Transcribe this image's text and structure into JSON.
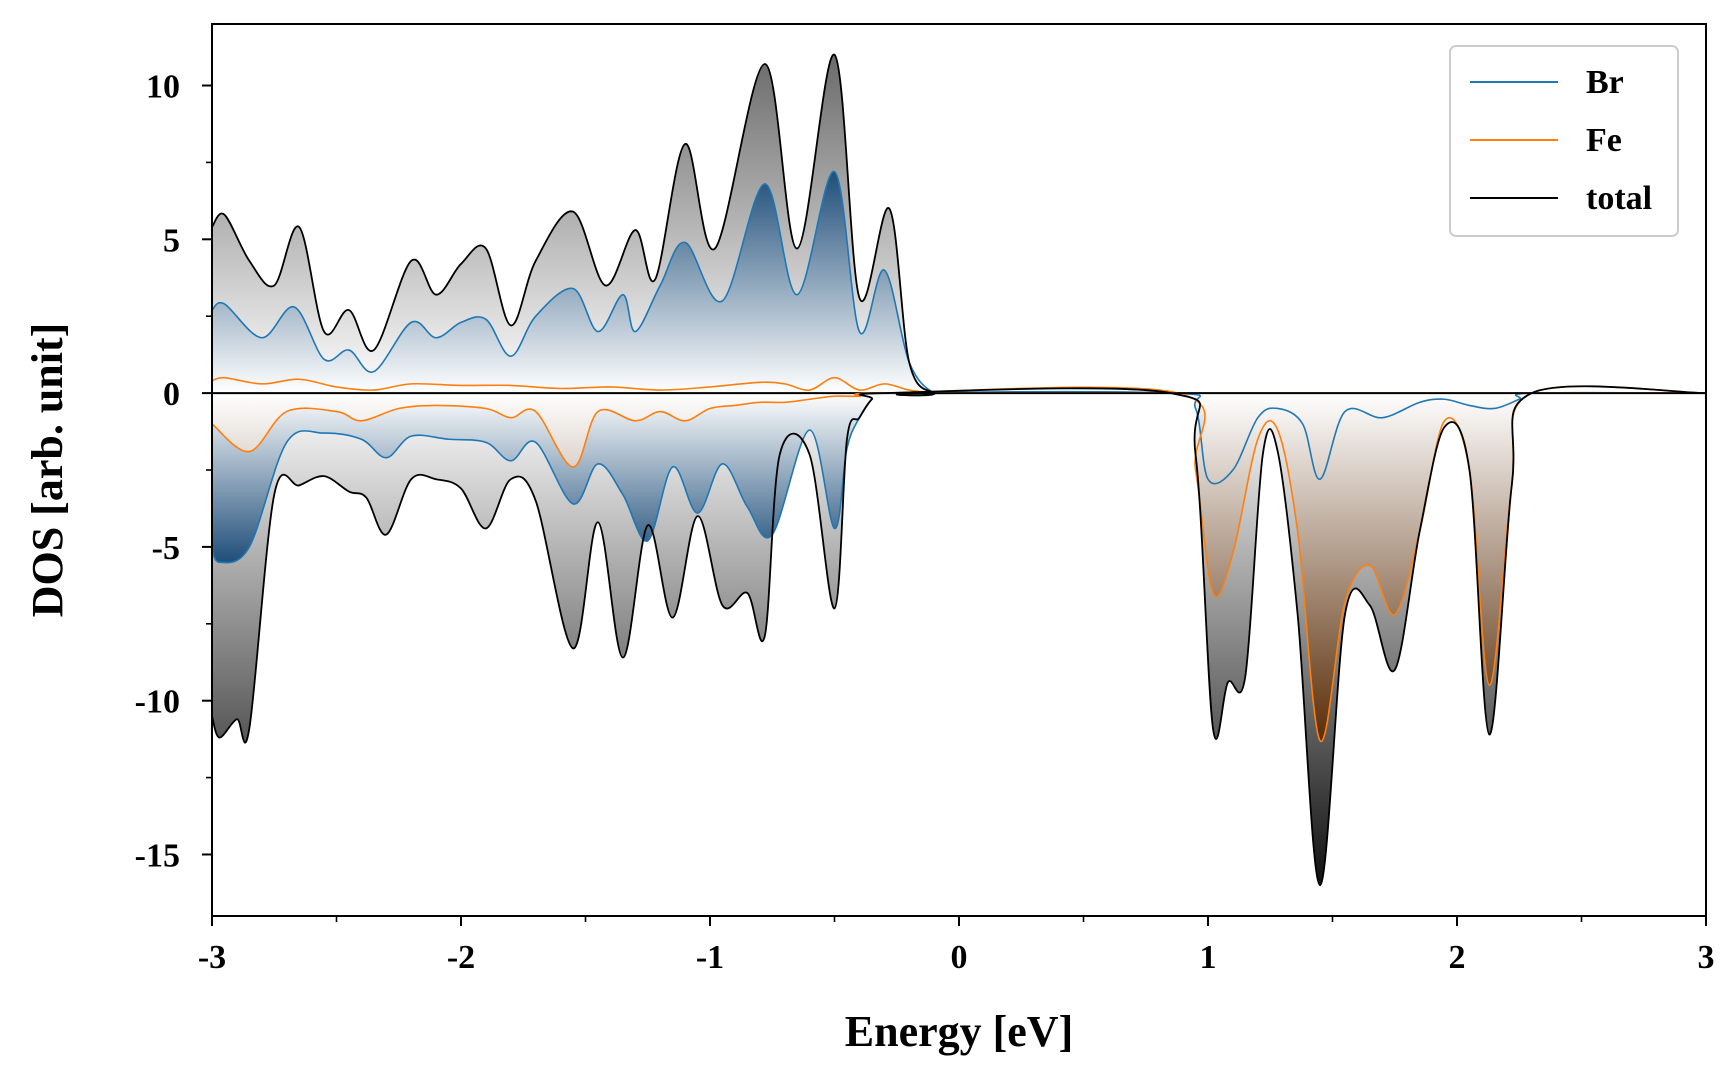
{
  "chart_data": {
    "type": "area",
    "xlabel": "Energy [eV]",
    "ylabel": "DOS [arb. unit]",
    "xlim": [
      -3,
      3
    ],
    "ylim": [
      -17,
      12
    ],
    "xticks": [
      -3,
      -2,
      -1,
      0,
      1,
      2,
      3
    ],
    "xtick_labels": [
      "-3",
      "-2",
      "-1",
      "0",
      "1",
      "2",
      "3"
    ],
    "yticks": [
      -15,
      -10,
      -5,
      0,
      5,
      10
    ],
    "ytick_labels": [
      "-15",
      "-10",
      "-5",
      "0",
      "5",
      "10"
    ],
    "grid": false,
    "legend_position": "top-right",
    "colors": {
      "Br": "#1f77b4",
      "Fe": "#ff7f0e",
      "total": "#000000"
    },
    "series": [
      {
        "name": "Br",
        "x_up": [
          -3.0,
          -2.95,
          -2.8,
          -2.67,
          -2.55,
          -2.45,
          -2.35,
          -2.2,
          -2.1,
          -2.0,
          -1.9,
          -1.8,
          -1.7,
          -1.55,
          -1.45,
          -1.35,
          -1.3,
          -1.2,
          -1.1,
          -0.95,
          -0.78,
          -0.65,
          -0.5,
          -0.4,
          -0.3,
          -0.2,
          -0.1,
          0.0,
          3.0
        ],
        "y_up": [
          2.7,
          2.9,
          1.8,
          2.8,
          1.1,
          1.4,
          0.7,
          2.3,
          1.8,
          2.3,
          2.4,
          1.2,
          2.5,
          3.4,
          2.0,
          3.2,
          2.0,
          3.5,
          4.9,
          3.0,
          6.8,
          3.2,
          7.2,
          2.0,
          4.0,
          1.0,
          0.0,
          0.0,
          0.0
        ],
        "x_down": [
          -3.0,
          -2.97,
          -2.85,
          -2.7,
          -2.55,
          -2.4,
          -2.3,
          -2.2,
          -2.05,
          -1.9,
          -1.8,
          -1.7,
          -1.55,
          -1.45,
          -1.35,
          -1.25,
          -1.15,
          -1.05,
          -0.95,
          -0.85,
          -0.75,
          -0.6,
          -0.5,
          -0.45,
          -0.4,
          -0.35,
          -0.3,
          0.85,
          0.95,
          1.0,
          1.1,
          1.2,
          1.28,
          1.38,
          1.45,
          1.55,
          1.7,
          1.85,
          1.95,
          2.05,
          2.15,
          2.25,
          2.3,
          3.0
        ],
        "y_down": [
          -5.0,
          -5.5,
          -5.0,
          -1.6,
          -1.3,
          -1.5,
          -2.1,
          -1.4,
          -1.5,
          -1.6,
          -2.2,
          -1.6,
          -3.6,
          -2.3,
          -3.3,
          -4.8,
          -2.4,
          -3.9,
          -2.3,
          -3.7,
          -4.6,
          -1.2,
          -4.4,
          -1.8,
          -0.8,
          -0.2,
          0.0,
          0.0,
          -0.5,
          -2.8,
          -2.5,
          -0.8,
          -0.5,
          -1.0,
          -2.8,
          -0.6,
          -0.8,
          -0.3,
          -0.2,
          -0.4,
          -0.5,
          -0.2,
          0.0,
          0.0
        ]
      },
      {
        "name": "Fe",
        "x_up": [
          -3.0,
          -2.95,
          -2.8,
          -2.65,
          -2.5,
          -2.35,
          -2.2,
          -2.0,
          -1.8,
          -1.6,
          -1.4,
          -1.2,
          -1.0,
          -0.8,
          -0.7,
          -0.6,
          -0.5,
          -0.4,
          -0.3,
          -0.2,
          -0.1,
          0.0,
          3.0
        ],
        "y_up": [
          0.4,
          0.5,
          0.3,
          0.45,
          0.2,
          0.1,
          0.3,
          0.25,
          0.25,
          0.15,
          0.2,
          0.1,
          0.2,
          0.35,
          0.3,
          0.1,
          0.5,
          0.1,
          0.3,
          0.1,
          0.0,
          0.0,
          0.0
        ],
        "x_down": [
          -3.0,
          -2.85,
          -2.7,
          -2.5,
          -2.4,
          -2.25,
          -2.1,
          -1.9,
          -1.8,
          -1.7,
          -1.55,
          -1.45,
          -1.3,
          -1.2,
          -1.1,
          -1.0,
          -0.9,
          -0.8,
          -0.7,
          -0.6,
          -0.5,
          -0.4,
          -0.3,
          0.88,
          0.95,
          1.02,
          1.1,
          1.2,
          1.28,
          1.36,
          1.45,
          1.55,
          1.65,
          1.75,
          1.85,
          1.95,
          2.05,
          2.13,
          2.22,
          2.3,
          3.0
        ],
        "y_down": [
          -1.0,
          -1.9,
          -0.6,
          -0.6,
          -0.9,
          -0.5,
          -0.4,
          -0.5,
          -0.8,
          -0.6,
          -2.4,
          -0.6,
          -0.9,
          -0.6,
          -0.9,
          -0.5,
          -0.4,
          -0.3,
          -0.3,
          -0.2,
          -0.1,
          -0.1,
          0.0,
          0.0,
          -2.5,
          -6.5,
          -5.2,
          -1.5,
          -1.2,
          -4.5,
          -11.3,
          -6.8,
          -5.6,
          -7.2,
          -4.5,
          -0.9,
          -2.5,
          -9.5,
          -3.0,
          0.0,
          0.0
        ]
      },
      {
        "name": "total",
        "x_up": [
          -3.0,
          -2.95,
          -2.85,
          -2.75,
          -2.65,
          -2.55,
          -2.45,
          -2.35,
          -2.2,
          -2.1,
          -2.0,
          -1.9,
          -1.8,
          -1.7,
          -1.55,
          -1.42,
          -1.3,
          -1.22,
          -1.1,
          -0.98,
          -0.78,
          -0.65,
          -0.5,
          -0.4,
          -0.28,
          -0.2,
          -0.1,
          0.0,
          3.0
        ],
        "y_up": [
          5.4,
          5.8,
          4.3,
          3.5,
          5.4,
          2.0,
          2.7,
          1.4,
          4.3,
          3.2,
          4.2,
          4.7,
          2.2,
          4.3,
          5.9,
          3.5,
          5.3,
          3.7,
          8.1,
          4.7,
          10.7,
          4.7,
          11.0,
          3.1,
          6.0,
          1.0,
          0.0,
          0.0,
          0.0
        ],
        "x_down": [
          -3.0,
          -2.97,
          -2.9,
          -2.85,
          -2.75,
          -2.65,
          -2.55,
          -2.45,
          -2.38,
          -2.3,
          -2.2,
          -2.1,
          -2.0,
          -1.9,
          -1.8,
          -1.7,
          -1.55,
          -1.45,
          -1.35,
          -1.25,
          -1.15,
          -1.05,
          -0.95,
          -0.85,
          -0.78,
          -0.72,
          -0.6,
          -0.5,
          -0.45,
          -0.4,
          -0.35,
          -0.3,
          0.85,
          0.95,
          1.02,
          1.08,
          1.15,
          1.22,
          1.28,
          1.36,
          1.45,
          1.55,
          1.65,
          1.75,
          1.85,
          1.95,
          2.05,
          2.13,
          2.22,
          2.3,
          3.0
        ],
        "y_down": [
          -10.5,
          -11.2,
          -10.6,
          -10.9,
          -3.3,
          -3.0,
          -2.7,
          -3.2,
          -3.4,
          -4.6,
          -2.8,
          -2.8,
          -3.1,
          -4.4,
          -2.8,
          -3.5,
          -8.3,
          -4.2,
          -8.6,
          -4.3,
          -7.3,
          -4.0,
          -6.9,
          -6.5,
          -7.9,
          -2.0,
          -2.0,
          -7.0,
          -1.5,
          -0.8,
          -0.2,
          0.0,
          0.0,
          -2.0,
          -10.9,
          -9.4,
          -9.2,
          -2.0,
          -1.9,
          -7.2,
          -16.0,
          -7.2,
          -6.9,
          -9.0,
          -4.5,
          -1.1,
          -2.5,
          -11.1,
          -3.0,
          0.0,
          0.0
        ]
      }
    ]
  }
}
